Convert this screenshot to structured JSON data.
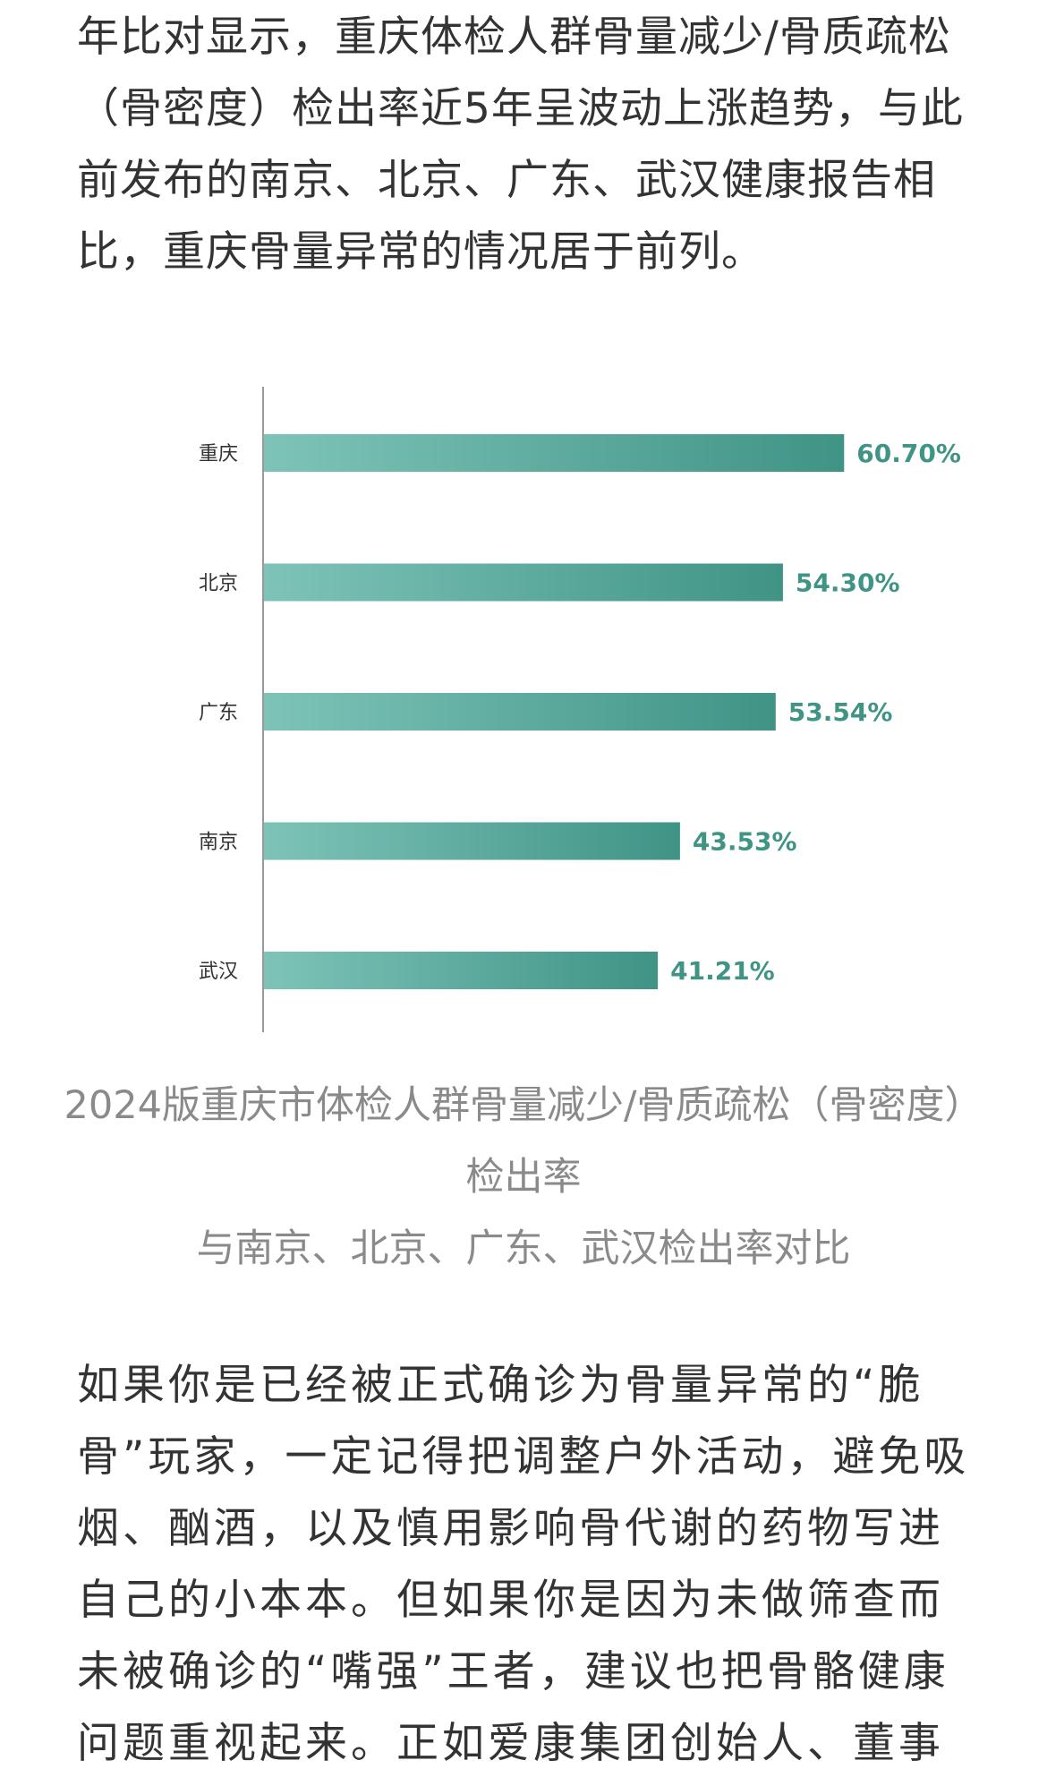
{
  "intro_paragraph": "年比对显示，重庆体检人群骨量减少/骨质疏松（骨密度）检出率近5年呈波动上涨趋势，与此前发布的南京、北京、广东、武汉健康报告相比，重庆骨量异常的情况居于前列。",
  "chart_data": {
    "type": "bar",
    "orientation": "horizontal",
    "categories": [
      "重庆",
      "北京",
      "广东",
      "南京",
      "武汉"
    ],
    "values": [
      60.7,
      54.3,
      53.54,
      43.53,
      41.21
    ],
    "value_labels": [
      "60.70%",
      "54.30%",
      "53.54%",
      "43.53%",
      "41.21%"
    ],
    "xlim": [
      0,
      100
    ],
    "grid": false,
    "colors": {
      "bar_start": "#7ec3b8",
      "bar_end": "#3f9486",
      "label": "#3f9486",
      "axis": "#999999"
    }
  },
  "caption": {
    "line1": "2024版重庆市体检人群骨量减少/骨质疏松（骨密度）检出率",
    "line2": "与南京、北京、广东、武汉检出率对比"
  },
  "body_paragraph": "如果你是已经被正式确诊为骨量异常的“脆骨”玩家，一定记得把调整户外活动，避免吸烟、酗酒，以及慎用影响骨代谢的药物写进自己的小本本。但如果你是因为未做筛查而未被确诊的“嘴强”王者，建议也把骨骼健康问题重视起来。正如爱康集团创始人、董事"
}
